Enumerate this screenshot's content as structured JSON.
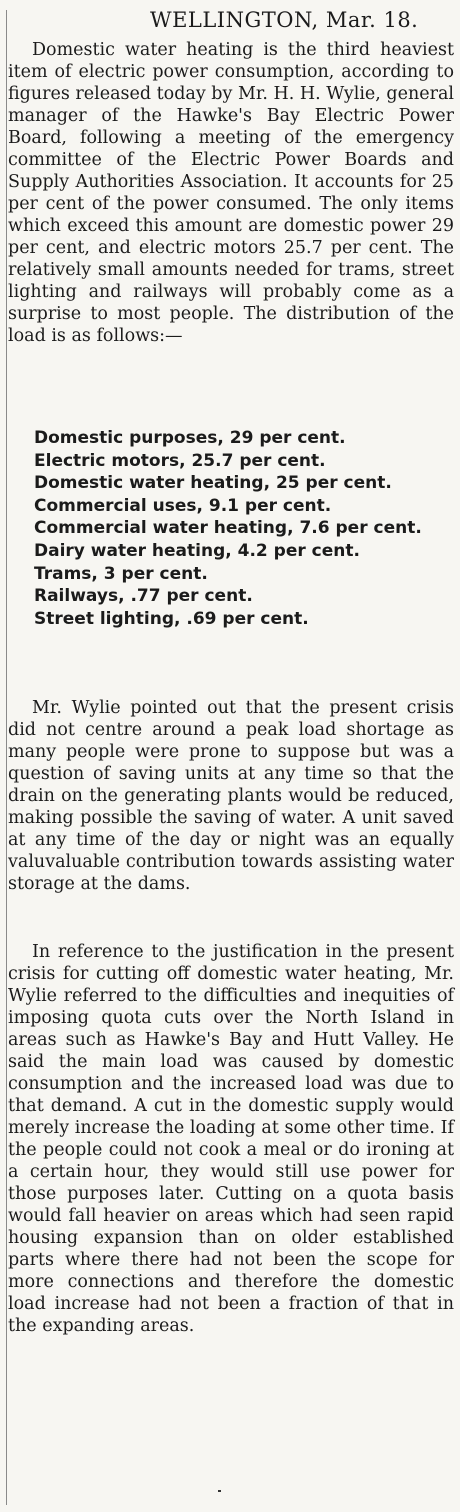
{
  "article": {
    "dateline": "WELLINGTON, Mar. 18.",
    "paragraphs": [
      "Domestic water heating is the third heaviest item of electric power consumption, according to figures released today by Mr. H. H. Wylie, general manager of the Hawke's Bay Electric Power Board, following a meeting of the emergency committee of the Electric Power Boards and Supply Authorities Association. It accounts for 25 per cent of the power consumed. The only items which exceed this amount are domestic power 29 per cent, and electric motors 25.7 per cent. The relatively small amounts needed for trams, street lighting and railways will probably come as a surprise to most people. The distribution of the load is as follows:—",
      "Mr. Wylie pointed out that the present crisis did not centre around a peak load shortage as many people were prone to suppose but was a question of saving units at any time so that the drain on the generating plants would be reduced, making possible the saving of water. A unit saved at any time of the day or night was an equally valuvaluable contribution towards assisting water storage at the dams.",
      "In reference to the justification in the present crisis for cutting off domestic water heating, Mr. Wylie referred to the difficulties and inequities of imposing quota cuts over the North Island in areas such as Hawke's Bay and Hutt Valley. He said the main load was caused by domestic consumption and the increased load was due to that demand. A cut in the domestic supply would merely increase the loading at some other time. If the people could not cook a meal or do ironing at a certain hour, they would still use power for those purposes later. Cutting on a quota basis would fall heavier on areas which had seen rapid housing expansion than on older established parts where there had not been the scope for more connections and therefore the domestic load increase had not been a fraction of that in the expanding areas."
    ],
    "distribution": [
      "Domestic purposes, 29 per cent.",
      "Electric motors, 25.7 per cent.",
      "Domestic water heating, 25 per cent.",
      "Commercial uses, 9.1 per cent.",
      "Commercial water heating, 7.6 per cent.",
      "Dairy water heating, 4.2 per cent.",
      "Trams, 3 per cent.",
      "Railways, .77 per cent.",
      "Street lighting, .69 per cent."
    ]
  }
}
